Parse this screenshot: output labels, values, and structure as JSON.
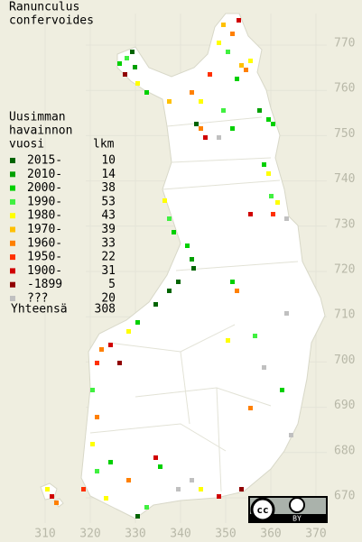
{
  "title": [
    "Ranunculus",
    "confervoides"
  ],
  "legend": {
    "heading": [
      "Uusimman",
      "havainnon",
      "vuosi"
    ],
    "count_heading": "lkm",
    "rows": [
      {
        "label": "2015-",
        "count": 10,
        "color": "#006400"
      },
      {
        "label": "2010-",
        "count": 14,
        "color": "#00a000"
      },
      {
        "label": "2000-",
        "count": 38,
        "color": "#00d000"
      },
      {
        "label": "1990-",
        "count": 53,
        "color": "#40f040"
      },
      {
        "label": "1980-",
        "count": 43,
        "color": "#ffff00"
      },
      {
        "label": "1970-",
        "count": 39,
        "color": "#ffc000"
      },
      {
        "label": "1960-",
        "count": 33,
        "color": "#ff8000"
      },
      {
        "label": "1950-",
        "count": 22,
        "color": "#ff3000"
      },
      {
        "label": "1900-",
        "count": 31,
        "color": "#d00000"
      },
      {
        "label": "-1899",
        "count": 5,
        "color": "#900000"
      },
      {
        "label": "???",
        "count": 20,
        "color": "#c0c0c0"
      }
    ],
    "total": {
      "label": "Yhteensä",
      "count": 308
    }
  },
  "y_axis_labels": [
    770,
    760,
    750,
    740,
    730,
    720,
    710,
    700,
    690,
    680,
    670
  ],
  "x_axis_labels": [
    310,
    320,
    330,
    340,
    350,
    360,
    370
  ],
  "license": {
    "cc": "cc",
    "by": "BY"
  }
}
